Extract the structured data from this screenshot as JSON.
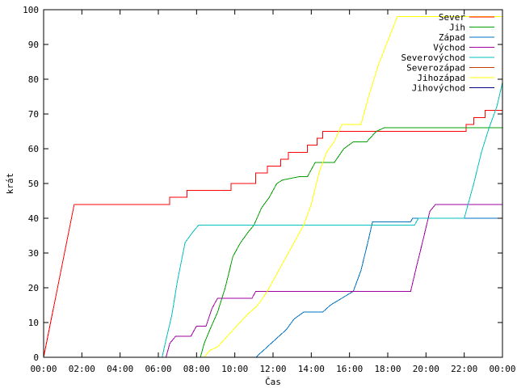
{
  "chart_data": {
    "type": "line",
    "xlabel": "Čas",
    "ylabel": "krát",
    "xlim": [
      0,
      24
    ],
    "ylim": [
      0,
      100
    ],
    "grid": false,
    "legend_position": "top-right",
    "x_ticks": [
      "00:00",
      "02:00",
      "04:00",
      "06:00",
      "08:00",
      "10:00",
      "12:00",
      "14:00",
      "16:00",
      "18:00",
      "20:00",
      "22:00",
      "00:00"
    ],
    "y_ticks": [
      "0",
      "10",
      "20",
      "30",
      "40",
      "50",
      "60",
      "70",
      "80",
      "90",
      "100"
    ],
    "series": [
      {
        "name": "Sever",
        "color": "#ff0000",
        "points": [
          [
            0,
            0
          ],
          [
            1.6,
            44
          ],
          [
            6.6,
            44
          ],
          [
            6.6,
            46
          ],
          [
            7.5,
            46
          ],
          [
            7.5,
            48
          ],
          [
            9.8,
            48
          ],
          [
            9.8,
            50
          ],
          [
            11.1,
            50
          ],
          [
            11.1,
            53
          ],
          [
            11.7,
            53
          ],
          [
            11.7,
            55
          ],
          [
            12.4,
            55
          ],
          [
            12.4,
            57
          ],
          [
            12.8,
            57
          ],
          [
            12.8,
            59
          ],
          [
            13.8,
            59
          ],
          [
            13.8,
            61
          ],
          [
            14.3,
            61
          ],
          [
            14.3,
            63
          ],
          [
            14.6,
            63
          ],
          [
            14.6,
            65
          ],
          [
            22.1,
            65
          ],
          [
            22.1,
            67
          ],
          [
            22.5,
            67
          ],
          [
            22.5,
            69
          ],
          [
            23.1,
            69
          ],
          [
            23.1,
            71
          ],
          [
            24,
            71
          ]
        ]
      },
      {
        "name": "Jih",
        "color": "#00a000",
        "points": [
          [
            8.2,
            0
          ],
          [
            8.4,
            4
          ],
          [
            8.7,
            8
          ],
          [
            9.1,
            13
          ],
          [
            9.5,
            20
          ],
          [
            9.9,
            29
          ],
          [
            10.3,
            33
          ],
          [
            10.7,
            36
          ],
          [
            11.0,
            38
          ],
          [
            11.4,
            43
          ],
          [
            11.8,
            46
          ],
          [
            12.2,
            50
          ],
          [
            12.5,
            51
          ],
          [
            13.4,
            52
          ],
          [
            13.8,
            52
          ],
          [
            14.2,
            56
          ],
          [
            15.2,
            56
          ],
          [
            15.7,
            60
          ],
          [
            16.2,
            62
          ],
          [
            16.9,
            62
          ],
          [
            17.4,
            65
          ],
          [
            17.8,
            66
          ],
          [
            24,
            66
          ]
        ]
      },
      {
        "name": "Západ",
        "color": "#0070c0",
        "points": [
          [
            11.1,
            0
          ],
          [
            11.5,
            2
          ],
          [
            11.9,
            4
          ],
          [
            12.3,
            6
          ],
          [
            12.7,
            8
          ],
          [
            13.1,
            11
          ],
          [
            13.6,
            13
          ],
          [
            14.6,
            13
          ],
          [
            15.0,
            15
          ],
          [
            15.6,
            17
          ],
          [
            16.2,
            19
          ],
          [
            16.6,
            25
          ],
          [
            17.0,
            34
          ],
          [
            17.2,
            39
          ],
          [
            19.2,
            39
          ],
          [
            19.3,
            40
          ],
          [
            24,
            40
          ]
        ]
      },
      {
        "name": "Východ",
        "color": "#a000a0",
        "points": [
          [
            6.4,
            0
          ],
          [
            6.6,
            4
          ],
          [
            6.9,
            6
          ],
          [
            7.7,
            6
          ],
          [
            8.0,
            9
          ],
          [
            8.5,
            9
          ],
          [
            8.8,
            14
          ],
          [
            9.1,
            17
          ],
          [
            10.9,
            17
          ],
          [
            11.1,
            19
          ],
          [
            19.2,
            19
          ],
          [
            19.5,
            26
          ],
          [
            19.9,
            35
          ],
          [
            20.2,
            42
          ],
          [
            20.5,
            44
          ],
          [
            24,
            44
          ]
        ]
      },
      {
        "name": "Severovýchod",
        "color": "#00c0c0",
        "points": [
          [
            6.2,
            0
          ],
          [
            6.4,
            5
          ],
          [
            6.7,
            12
          ],
          [
            7.0,
            22
          ],
          [
            7.4,
            33
          ],
          [
            7.8,
            36
          ],
          [
            8.1,
            38
          ],
          [
            19.4,
            38
          ],
          [
            19.6,
            40
          ],
          [
            22.0,
            40
          ],
          [
            22.5,
            50
          ],
          [
            22.9,
            59
          ],
          [
            23.3,
            66
          ],
          [
            23.7,
            72
          ],
          [
            24,
            79
          ]
        ]
      },
      {
        "name": "Severozápad",
        "color": "#c04000",
        "points": []
      },
      {
        "name": "Jihozápad",
        "color": "#ffff00",
        "points": [
          [
            8.4,
            0
          ],
          [
            8.7,
            2
          ],
          [
            9.1,
            3
          ],
          [
            9.6,
            6
          ],
          [
            10.1,
            9
          ],
          [
            10.6,
            12
          ],
          [
            11.2,
            15
          ],
          [
            11.7,
            19
          ],
          [
            12.1,
            23
          ],
          [
            12.5,
            27
          ],
          [
            12.9,
            31
          ],
          [
            13.3,
            35
          ],
          [
            13.6,
            38
          ],
          [
            14.0,
            44
          ],
          [
            14.4,
            53
          ],
          [
            14.8,
            59
          ],
          [
            15.2,
            62
          ],
          [
            15.6,
            67
          ],
          [
            16.6,
            67
          ],
          [
            17.0,
            75
          ],
          [
            17.5,
            84
          ],
          [
            18.0,
            91
          ],
          [
            18.5,
            98
          ],
          [
            24,
            98
          ]
        ]
      },
      {
        "name": "Jihovýchod",
        "color": "#000080",
        "points": []
      }
    ]
  }
}
